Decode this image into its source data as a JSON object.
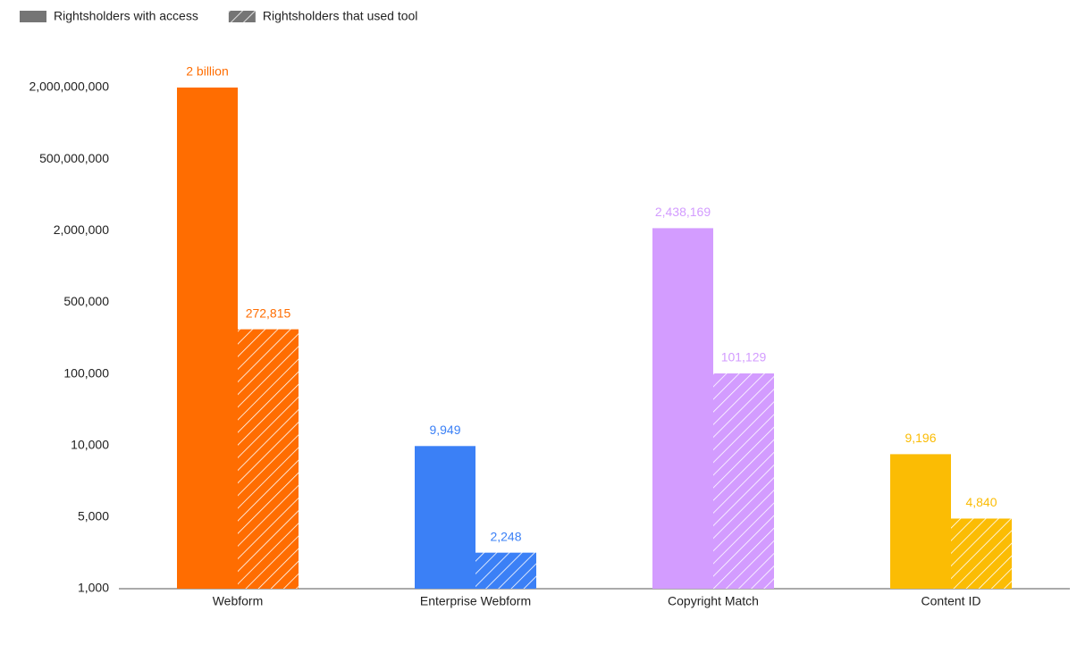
{
  "chart_data": {
    "type": "bar",
    "categories": [
      "Webform",
      "Enterprise Webform",
      "Copyright Match",
      "Content ID"
    ],
    "colors": [
      "#ff6d01",
      "#3b80f6",
      "#d39cff",
      "#fbbc04"
    ],
    "series": [
      {
        "name": "Rightsholders with access",
        "pattern": "solid",
        "values": [
          2000000000,
          9949,
          2438169,
          9196
        ],
        "value_labels": [
          "2 billion",
          "9,949",
          "2,438,169",
          "9,196"
        ]
      },
      {
        "name": "Rightsholders that used tool",
        "pattern": "hatch",
        "values": [
          272815,
          2248,
          101129,
          4840
        ],
        "value_labels": [
          "272,815",
          "2,248",
          "101,129",
          "4,840"
        ]
      }
    ],
    "ylim": [
      1000,
      2000000000
    ],
    "yticks": [
      {
        "value": 1000,
        "label": "1,000"
      },
      {
        "value": 5000,
        "label": "5,000"
      },
      {
        "value": 10000,
        "label": "10,000"
      },
      {
        "value": 100000,
        "label": "100,000"
      },
      {
        "value": 500000,
        "label": "500,000"
      },
      {
        "value": 2000000,
        "label": "2,000,000"
      },
      {
        "value": 500000000,
        "label": "500,000,000"
      },
      {
        "value": 2000000000,
        "label": "2,000,000,000"
      }
    ],
    "legend": "top-left"
  }
}
